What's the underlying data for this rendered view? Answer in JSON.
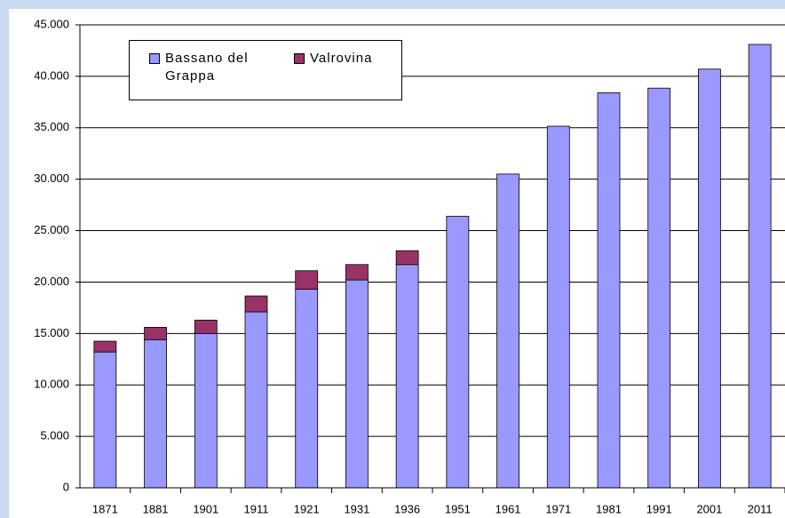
{
  "chart_data": {
    "type": "stacked_bar",
    "categories": [
      "1871",
      "1881",
      "1901",
      "1911",
      "1921",
      "1931",
      "1936",
      "1951",
      "1961",
      "1971",
      "1981",
      "1991",
      "2001",
      "2011"
    ],
    "series": [
      {
        "name": "Bassano del Grappa",
        "color": "#9999ff",
        "values": [
          13200,
          14400,
          15000,
          17100,
          19300,
          20200,
          21700,
          26400,
          30500,
          35150,
          38400,
          38850,
          40700,
          43100
        ]
      },
      {
        "name": "Valrovina",
        "color": "#993366",
        "values": [
          1050,
          1200,
          1300,
          1550,
          1800,
          1500,
          1350,
          null,
          null,
          null,
          null,
          null,
          null,
          null
        ]
      }
    ],
    "ylim": [
      0,
      45000
    ],
    "yticks": [
      0,
      {
        "value": 5000,
        "label": "5.000"
      },
      {
        "value": 10000,
        "label": "10.000"
      },
      {
        "value": 15000,
        "label": "15.000"
      },
      {
        "value": 20000,
        "label": "20.000"
      },
      {
        "value": 25000,
        "label": "25.000"
      },
      {
        "value": 30000,
        "label": "30.000"
      },
      {
        "value": 35000,
        "label": "35.000"
      },
      {
        "value": 40000,
        "label": "40.000"
      },
      {
        "value": 45000,
        "label": "45.000"
      }
    ],
    "grid": true,
    "legend": "top-left"
  }
}
